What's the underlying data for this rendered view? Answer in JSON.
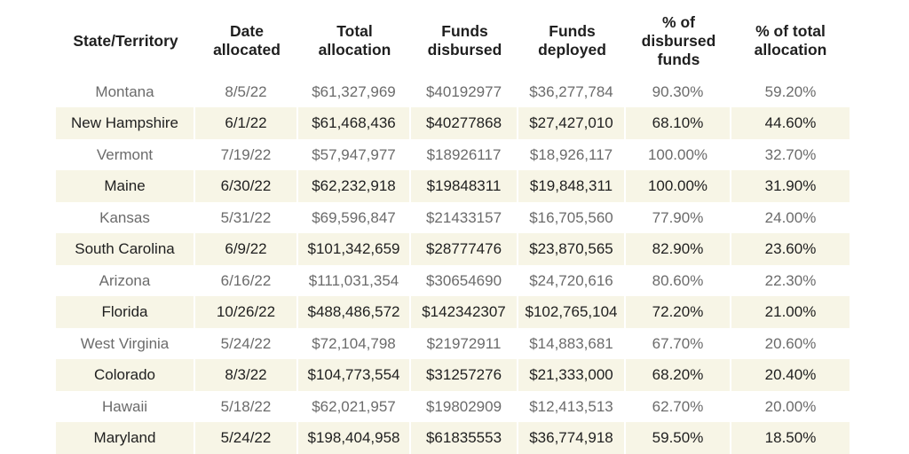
{
  "headers": {
    "state": "State/Territory",
    "date_1": "Date",
    "date_2": "allocated",
    "total_1": "Total",
    "total_2": "allocation",
    "disbursed_1": "Funds",
    "disbursed_2": "disbursed",
    "deployed_1": "Funds",
    "deployed_2": "deployed",
    "pct_disb_1": "% of",
    "pct_disb_2": "disbursed",
    "pct_disb_3": "funds",
    "pct_total_1": "% of total",
    "pct_total_2": "allocation"
  },
  "rows": [
    {
      "state": "Montana",
      "date": "8/5/22",
      "total": "$61,327,969",
      "disbursed": "$40192977",
      "deployed": "$36,277,784",
      "pct_disbursed": "90.30%",
      "pct_total": "59.20%"
    },
    {
      "state": "New Hampshire",
      "date": "6/1/22",
      "total": "$61,468,436",
      "disbursed": "$40277868",
      "deployed": "$27,427,010",
      "pct_disbursed": "68.10%",
      "pct_total": "44.60%"
    },
    {
      "state": "Vermont",
      "date": "7/19/22",
      "total": "$57,947,977",
      "disbursed": "$18926117",
      "deployed": "$18,926,117",
      "pct_disbursed": "100.00%",
      "pct_total": "32.70%"
    },
    {
      "state": "Maine",
      "date": "6/30/22",
      "total": "$62,232,918",
      "disbursed": "$19848311",
      "deployed": "$19,848,311",
      "pct_disbursed": "100.00%",
      "pct_total": "31.90%"
    },
    {
      "state": "Kansas",
      "date": "5/31/22",
      "total": "$69,596,847",
      "disbursed": "$21433157",
      "deployed": "$16,705,560",
      "pct_disbursed": "77.90%",
      "pct_total": "24.00%"
    },
    {
      "state": "South Carolina",
      "date": "6/9/22",
      "total": "$101,342,659",
      "disbursed": "$28777476",
      "deployed": "$23,870,565",
      "pct_disbursed": "82.90%",
      "pct_total": "23.60%"
    },
    {
      "state": "Arizona",
      "date": "6/16/22",
      "total": "$111,031,354",
      "disbursed": "$30654690",
      "deployed": "$24,720,616",
      "pct_disbursed": "80.60%",
      "pct_total": "22.30%"
    },
    {
      "state": "Florida",
      "date": "10/26/22",
      "total": "$488,486,572",
      "disbursed": "$142342307",
      "deployed": "$102,765,104",
      "pct_disbursed": "72.20%",
      "pct_total": "21.00%"
    },
    {
      "state": "West Virginia",
      "date": "5/24/22",
      "total": "$72,104,798",
      "disbursed": "$21972911",
      "deployed": "$14,883,681",
      "pct_disbursed": "67.70%",
      "pct_total": "20.60%"
    },
    {
      "state": "Colorado",
      "date": "8/3/22",
      "total": "$104,773,554",
      "disbursed": "$31257276",
      "deployed": "$21,333,000",
      "pct_disbursed": "68.20%",
      "pct_total": "20.40%"
    },
    {
      "state": "Hawaii",
      "date": "5/18/22",
      "total": "$62,021,957",
      "disbursed": "$19802909",
      "deployed": "$12,413,513",
      "pct_disbursed": "62.70%",
      "pct_total": "20.00%"
    },
    {
      "state": "Maryland",
      "date": "5/24/22",
      "total": "$198,404,958",
      "disbursed": "$61835553",
      "deployed": "$36,774,918",
      "pct_disbursed": "59.50%",
      "pct_total": "18.50%"
    }
  ],
  "colors": {
    "band": "#f7f5e6",
    "dark_text": "#1f1f1f",
    "muted_text": "#6b6b6b"
  }
}
